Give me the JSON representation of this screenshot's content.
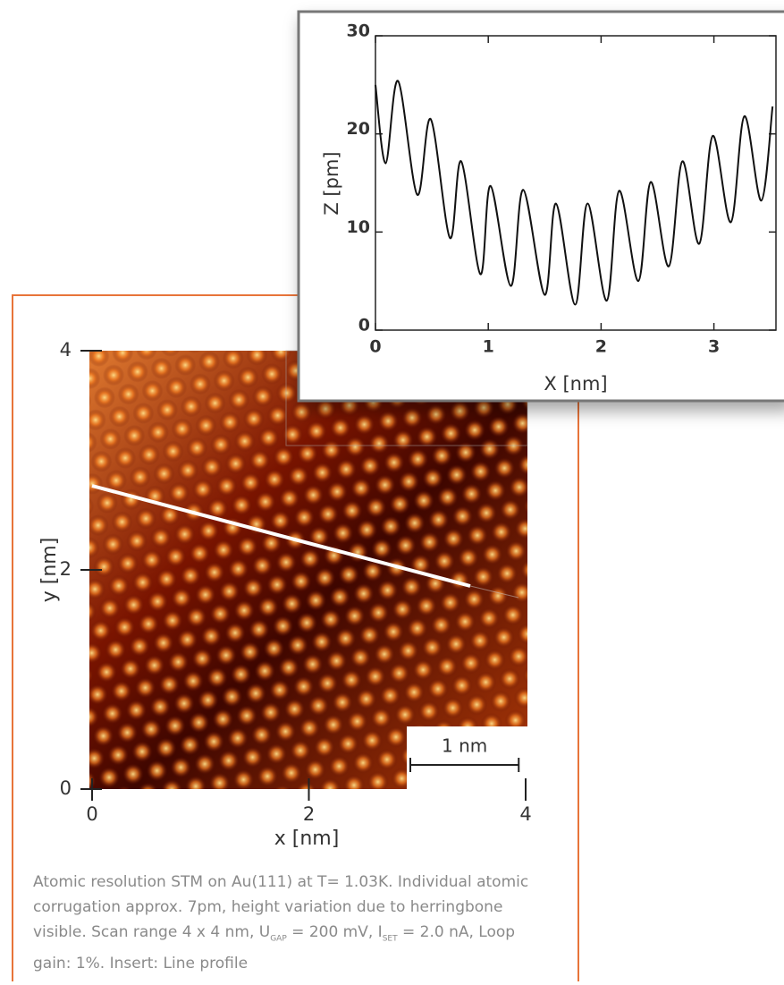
{
  "chart_data": [
    {
      "type": "image",
      "xlabel": "x [nm]",
      "ylabel": "y [nm]",
      "xlim": [
        0,
        4
      ],
      "ylim": [
        0,
        4
      ],
      "xticks": [
        0,
        2,
        4
      ],
      "yticks": [
        0,
        2,
        4
      ],
      "scale_bar": {
        "value": 1,
        "label": "1 nm"
      }
    },
    {
      "type": "line",
      "xlabel": "X [nm]",
      "ylabel": "Z [pm]",
      "xlim": [
        0,
        3.55
      ],
      "ylim": [
        0,
        30
      ],
      "xticks": [
        0,
        1,
        2,
        3
      ],
      "yticks": [
        0,
        10,
        20,
        30
      ],
      "x": [
        0,
        0.09,
        0.2,
        0.37,
        0.49,
        0.66,
        0.76,
        0.93,
        1.02,
        1.2,
        1.31,
        1.5,
        1.6,
        1.77,
        1.88,
        2.05,
        2.16,
        2.33,
        2.44,
        2.6,
        2.72,
        2.87,
        2.99,
        3.15,
        3.27,
        3.42,
        3.52
      ],
      "series": [
        {
          "color": "#111111",
          "values": [
            25,
            17,
            25.4,
            13.8,
            21.5,
            9.4,
            17.2,
            5.7,
            14.7,
            4.5,
            14.3,
            3.6,
            12.9,
            2.6,
            12.9,
            3.0,
            14.2,
            5.0,
            15.1,
            6.5,
            17.2,
            8.8,
            19.8,
            11,
            21.8,
            13.2,
            22.8
          ]
        }
      ]
    }
  ],
  "caption": [
    "Atomic resolution STM on Au(111) at T= 1.03K. Individual atomic corrugation approx. 7pm, height variation due to herringbone visible. Scan range 4 x 4 nm, U",
    "GAP",
    " = 200 mV, I",
    "SET",
    " = 2.0 nA, Loop gain: 1%. Insert: Line profile"
  ]
}
